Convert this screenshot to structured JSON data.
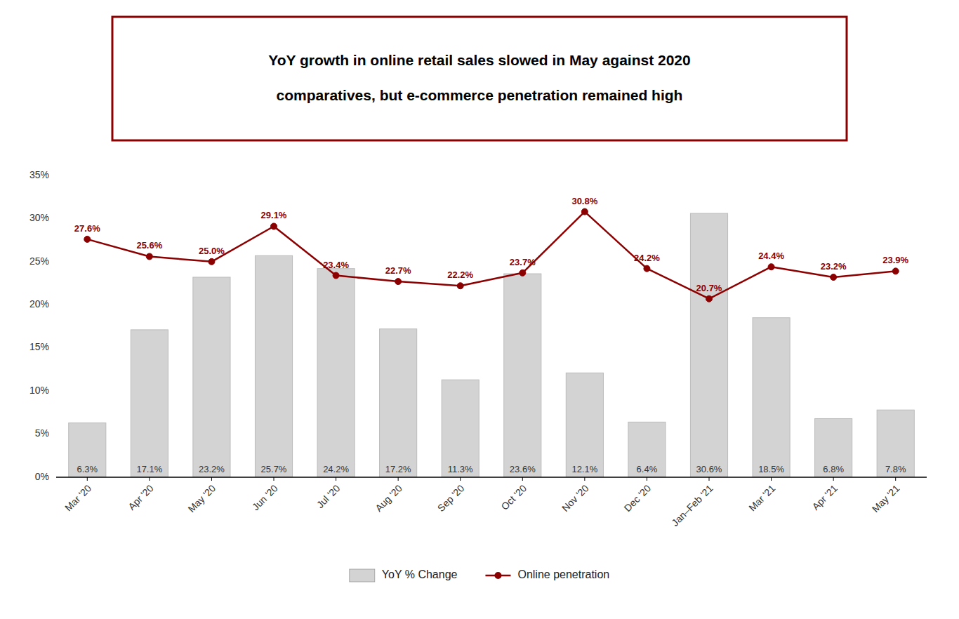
{
  "chart_data": {
    "type": "bar",
    "title": "YoY growth in online retail sales slowed in May against 2020\ncomparatives, but e-commerce penetration remained high",
    "categories": [
      "Mar '20",
      "Apr '20",
      "May '20",
      "Jun '20",
      "Jul '20",
      "Aug '20",
      "Sep '20",
      "Oct '20",
      "Nov '20",
      "Dec '20",
      "Jan–Feb '21",
      "Mar '21",
      "Apr '21",
      "May '21"
    ],
    "series": [
      {
        "name": "YoY % Change",
        "type": "bar",
        "color": "#d3d3d3",
        "values": [
          6.3,
          17.1,
          23.2,
          25.7,
          24.2,
          17.2,
          11.3,
          23.6,
          12.1,
          6.4,
          30.6,
          18.5,
          6.8,
          7.8
        ],
        "value_labels": [
          "6.3%",
          "17.1%",
          "23.2%",
          "25.7%",
          "24.2%",
          "17.2%",
          "11.3%",
          "23.6%",
          "12.1%",
          "6.4%",
          "30.6%",
          "18.5%",
          "6.8%",
          "7.8%"
        ]
      },
      {
        "name": "Online penetration",
        "type": "line",
        "color": "#8b0000",
        "marker": "circle",
        "values": [
          27.6,
          25.6,
          25.0,
          29.1,
          23.4,
          22.7,
          22.2,
          23.7,
          30.8,
          24.2,
          20.7,
          24.4,
          23.2,
          23.9
        ],
        "value_labels": [
          "27.6%",
          "25.6%",
          "25.0%",
          "29.1%",
          "23.4%",
          "22.7%",
          "22.2%",
          "23.7%",
          "30.8%",
          "24.2%",
          "20.7%",
          "24.4%",
          "23.2%",
          "23.9%"
        ]
      }
    ],
    "ylim": [
      0,
      35
    ],
    "yticks": [
      {
        "value": 0,
        "label": "0%"
      },
      {
        "value": 5,
        "label": "5%"
      },
      {
        "value": 10,
        "label": "10%"
      },
      {
        "value": 15,
        "label": "15%"
      },
      {
        "value": 20,
        "label": "20%"
      },
      {
        "value": 25,
        "label": "25%"
      },
      {
        "value": 30,
        "label": "30%"
      },
      {
        "value": 35,
        "label": "35%"
      }
    ],
    "grid": false,
    "legend": "bottom",
    "data_labels": true
  }
}
